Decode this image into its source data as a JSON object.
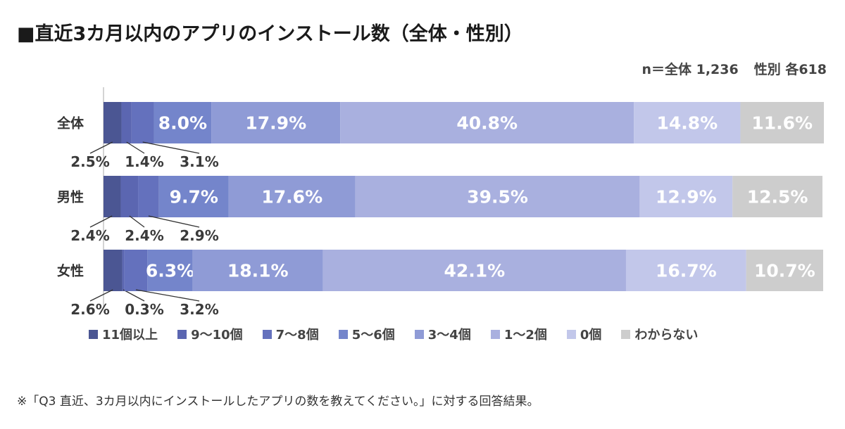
{
  "title": "■直近3カ月以内のアプリのインストール数（全体・性別）",
  "sample_size": {
    "total": "n＝全体 1,236",
    "by_gender": "性別 各618"
  },
  "colors": [
    "#4b5693",
    "#5b66b1",
    "#6471bd",
    "#7485cb",
    "#8f9bd6",
    "#a9b0df",
    "#c2c7ea",
    "#cdcdcd"
  ],
  "chart_data": {
    "type": "bar",
    "orientation": "horizontal",
    "stacked": true,
    "normalized": true,
    "categories": [
      "全体",
      "男性",
      "女性"
    ],
    "xlim": [
      0,
      100
    ],
    "unit": "%",
    "series": [
      {
        "name": "11個以上",
        "values": [
          2.5,
          2.4,
          2.6
        ],
        "labels": [
          "2.5%",
          "2.4%",
          "2.6%"
        ]
      },
      {
        "name": "9〜10個",
        "values": [
          1.4,
          2.4,
          0.3
        ],
        "labels": [
          "1.4%",
          "2.4%",
          "0.3%"
        ]
      },
      {
        "name": "7〜8個",
        "values": [
          3.1,
          2.9,
          3.2
        ],
        "labels": [
          "3.1%",
          "2.9%",
          "3.2%"
        ]
      },
      {
        "name": "5〜6個",
        "values": [
          8.0,
          9.7,
          6.3
        ],
        "labels": [
          "8.0%",
          "9.7%",
          "6.3%"
        ]
      },
      {
        "name": "3〜4個",
        "values": [
          17.9,
          17.6,
          18.1
        ],
        "labels": [
          "17.9%",
          "17.6%",
          "18.1%"
        ]
      },
      {
        "name": "1〜2個",
        "values": [
          40.8,
          39.5,
          42.1
        ],
        "labels": [
          "40.8%",
          "39.5%",
          "42.1%"
        ]
      },
      {
        "name": "0個",
        "values": [
          14.8,
          12.9,
          16.7
        ],
        "labels": [
          "14.8%",
          "12.9%",
          "16.7%"
        ]
      },
      {
        "name": "わからない",
        "values": [
          11.6,
          12.5,
          10.7
        ],
        "labels": [
          "11.6%",
          "12.5%",
          "10.7%"
        ]
      }
    ],
    "legend_position": "bottom"
  },
  "note": "※「Q3 直近、3カ月以内にインストールしたアプリの数を教えてください。」に対する回答結果。"
}
